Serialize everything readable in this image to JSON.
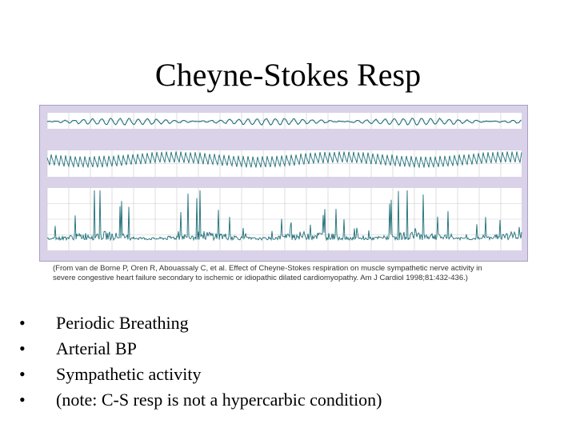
{
  "slide": {
    "title": "Cheyne-Stokes Resp",
    "caption_line1": "(From van de Borne P, Oren R, Abouassaly C, et al. Effect of Cheyne-Stokes respiration on muscle sympathetic nerve activity in",
    "caption_line2": "severe congestive heart failure secondary to ischemic or idiopathic dilated cardiomyopathy. Am J Cardiol 1998;81:432-436.)",
    "bullets": [
      "Periodic Breathing",
      "Arterial BP",
      "Sympathetic activity",
      "(note: C-S resp is not a hypercarbic condition)"
    ]
  },
  "colors": {
    "trace": "#1f6f78",
    "frame_bg": "#d9d2e9",
    "panel_bg": "#ffffff",
    "grid": "#c9c9c9"
  }
}
